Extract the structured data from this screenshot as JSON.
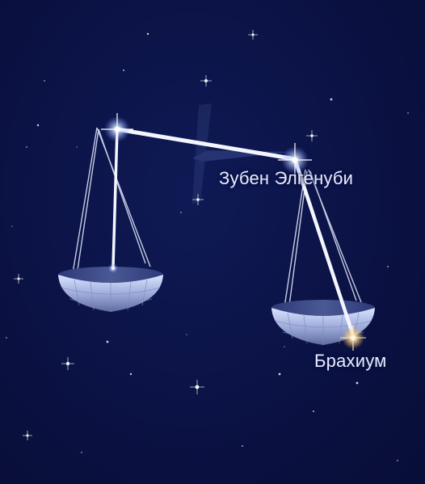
{
  "labels": {
    "zuben": "Зубен Элгенуби",
    "brachium": "Брахиум"
  },
  "colors": {
    "sky": "#0b1244",
    "line": "#eef2ff",
    "pan_light": "#c7d2f2",
    "pan_dark": "#5e6a9c",
    "star_white": "#ffffff",
    "star_gold": "#ffd27a"
  }
}
